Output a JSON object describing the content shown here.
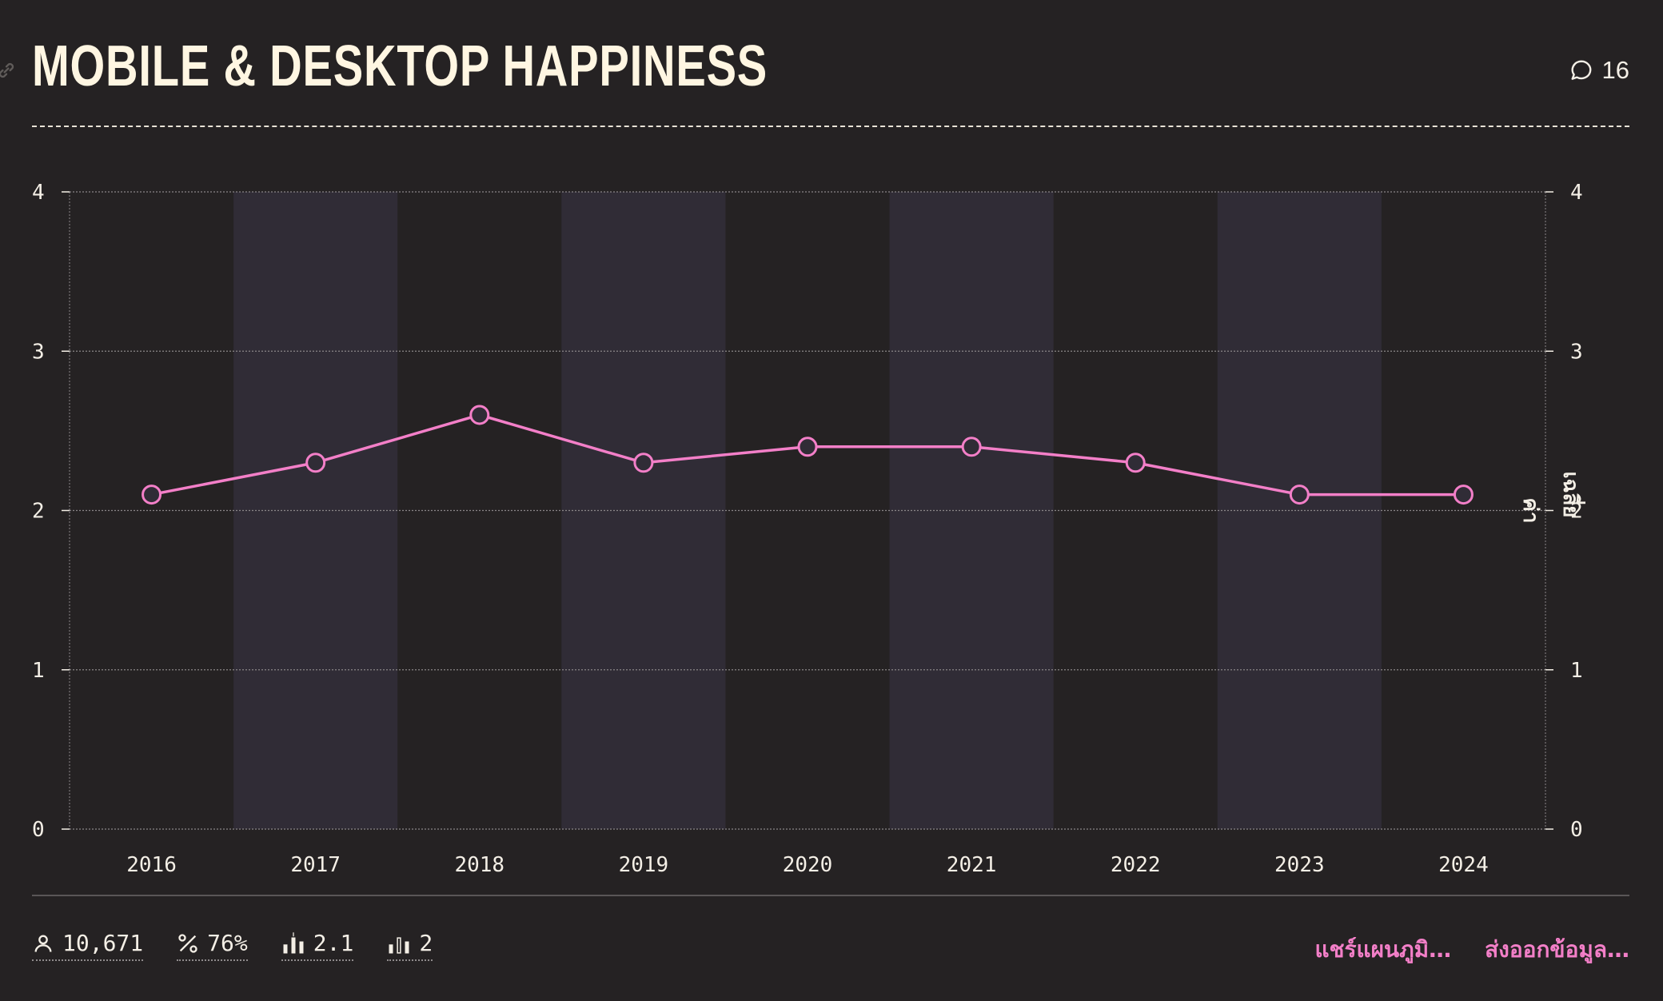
{
  "header": {
    "title": "MOBILE & DESKTOP HAPPINESS",
    "comment_count": "16",
    "icons": [
      "link-icon",
      "comment-icon"
    ]
  },
  "chart_data": {
    "type": "line",
    "categories": [
      "2016",
      "2017",
      "2018",
      "2019",
      "2020",
      "2021",
      "2022",
      "2023",
      "2024"
    ],
    "series": [
      {
        "values": [
          2.1,
          2.3,
          2.6,
          2.3,
          2.4,
          2.4,
          2.3,
          2.1,
          2.1
        ]
      }
    ],
    "ylim": [
      0,
      4
    ],
    "yticks": [
      "0",
      "1",
      "2",
      "3",
      "4"
    ],
    "y2ticks": [
      "0",
      "1",
      "2",
      "3",
      "4"
    ],
    "y2label_parts": [
      "ค่า",
      "เฉลี่ย"
    ],
    "grid": true,
    "colors": {
      "line": "#f37fc8",
      "band": "#302c36",
      "grid": "#8a8688",
      "text": "#f4efe6"
    }
  },
  "footer": {
    "stats": [
      {
        "icon": "person-icon",
        "value": "10,671"
      },
      {
        "icon": "percent-icon",
        "value": "76%"
      },
      {
        "icon": "mean-bars-icon",
        "value": "2.1"
      },
      {
        "icon": "median-bars-icon",
        "value": "2"
      }
    ],
    "share_label": "แชร์แผนภูมิ…",
    "export_label": "ส่งออกข้อมูล…"
  }
}
